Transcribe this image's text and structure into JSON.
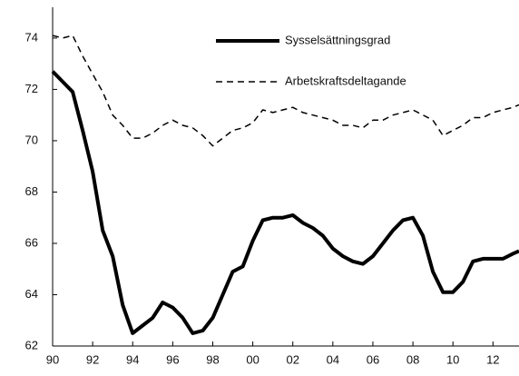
{
  "chart_data": {
    "type": "line",
    "x": [
      1990,
      1990.5,
      1991,
      1991.5,
      1992,
      1992.5,
      1993,
      1993.5,
      1994,
      1994.5,
      1995,
      1995.5,
      1996,
      1996.5,
      1997,
      1997.5,
      1998,
      1998.5,
      1999,
      1999.5,
      2000,
      2000.5,
      2001,
      2001.5,
      2002,
      2002.5,
      2003,
      2003.5,
      2004,
      2004.5,
      2005,
      2005.5,
      2006,
      2006.5,
      2007,
      2007.5,
      2008,
      2008.5,
      2009,
      2009.5,
      2010,
      2010.5,
      2011,
      2011.5,
      2012,
      2012.5,
      2013,
      2013.3
    ],
    "series": [
      {
        "name": "Sysselsättningsgrad",
        "color": "#000000",
        "dash": "solid",
        "values": [
          72.7,
          72.3,
          71.9,
          70.4,
          68.8,
          66.5,
          65.5,
          63.6,
          62.5,
          62.8,
          63.1,
          63.7,
          63.5,
          63.1,
          62.5,
          62.6,
          63.1,
          64.0,
          64.9,
          65.1,
          66.1,
          66.9,
          67.0,
          67.0,
          67.1,
          66.8,
          66.6,
          66.3,
          65.8,
          65.5,
          65.3,
          65.2,
          65.5,
          66.0,
          66.5,
          66.9,
          67.0,
          66.3,
          64.9,
          64.1,
          64.1,
          64.5,
          65.3,
          65.4,
          65.4,
          65.4,
          65.6,
          65.7
        ]
      },
      {
        "name": "Arbetskraftsdeltagande",
        "color": "#000000",
        "dash": "dashed",
        "values": [
          74.1,
          74.0,
          74.1,
          73.3,
          72.6,
          71.9,
          71.0,
          70.6,
          70.1,
          70.1,
          70.3,
          70.6,
          70.8,
          70.6,
          70.5,
          70.2,
          69.8,
          70.1,
          70.4,
          70.5,
          70.7,
          71.2,
          71.1,
          71.2,
          71.3,
          71.1,
          71.0,
          70.9,
          70.8,
          70.6,
          70.6,
          70.5,
          70.8,
          70.8,
          71.0,
          71.1,
          71.2,
          71.0,
          70.8,
          70.2,
          70.4,
          70.6,
          70.9,
          70.9,
          71.1,
          71.2,
          71.3,
          71.4
        ]
      }
    ],
    "xlim": [
      1990,
      2013.3
    ],
    "xticks": [
      {
        "value": 1990,
        "label": "90"
      },
      {
        "value": 1992,
        "label": "92"
      },
      {
        "value": 1994,
        "label": "94"
      },
      {
        "value": 1996,
        "label": "96"
      },
      {
        "value": 1998,
        "label": "98"
      },
      {
        "value": 2000,
        "label": "00"
      },
      {
        "value": 2002,
        "label": "02"
      },
      {
        "value": 2004,
        "label": "04"
      },
      {
        "value": 2006,
        "label": "06"
      },
      {
        "value": 2008,
        "label": "08"
      },
      {
        "value": 2010,
        "label": "10"
      },
      {
        "value": 2012,
        "label": "12"
      }
    ],
    "ylim": [
      62,
      75.2
    ],
    "yticks": [
      62,
      64,
      66,
      68,
      70,
      72,
      74
    ],
    "grid": false,
    "legend": "upper right"
  }
}
